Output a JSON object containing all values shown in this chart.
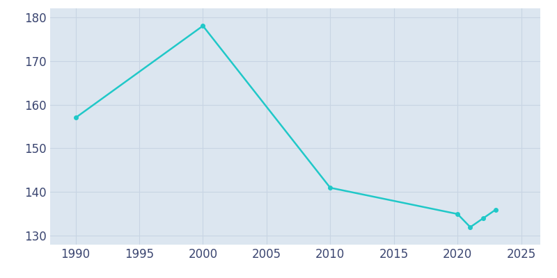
{
  "years": [
    1990,
    2000,
    2010,
    2020,
    2021,
    2022,
    2023
  ],
  "population": [
    157,
    178,
    141,
    135,
    132,
    134,
    136
  ],
  "line_color": "#20C8C8",
  "marker_color": "#20C8C8",
  "fig_bg_color": "#ffffff",
  "plot_bg_color": "#dce6f0",
  "xlim": [
    1988,
    2026.5
  ],
  "ylim": [
    128,
    182
  ],
  "xticks": [
    1990,
    1995,
    2000,
    2005,
    2010,
    2015,
    2020,
    2025
  ],
  "yticks": [
    130,
    140,
    150,
    160,
    170,
    180
  ],
  "grid_color": "#c8d4e3",
  "tick_color": "#3a4570",
  "label_fontsize": 12,
  "linewidth": 1.8,
  "markersize": 4
}
